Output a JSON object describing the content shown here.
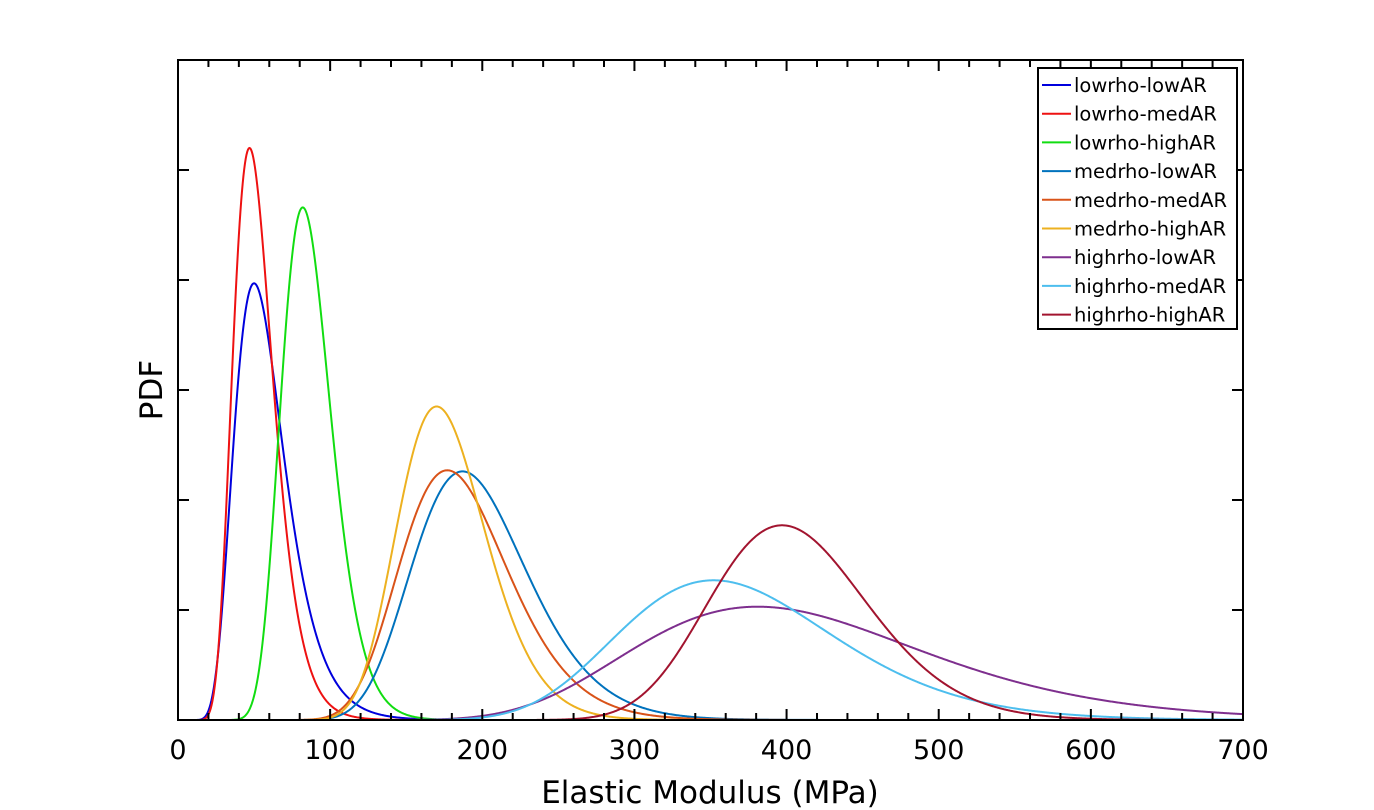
{
  "chart_data": {
    "type": "line",
    "title": "",
    "xlabel": "Elastic Modulus (MPa)",
    "ylabel": "PDF",
    "xlim": [
      0,
      700
    ],
    "ylim": [
      0,
      6
    ],
    "x_ticks": [
      0,
      100,
      200,
      300,
      400,
      500,
      600,
      700
    ],
    "x_tick_labels": [
      "0",
      "100",
      "200",
      "300",
      "400",
      "500",
      "600",
      "700"
    ],
    "x_minor_step": 20,
    "y_ticks": [
      0,
      1,
      2,
      3,
      4,
      5,
      6
    ],
    "y_tick_labels": [],
    "y_units_note": "y tick labels not shown; values in tick units (relative PDF)",
    "grid": false,
    "legend_position": "upper right",
    "series": [
      {
        "name": "lowrho-lowAR",
        "color": "#0000dd",
        "distribution": "lognormal",
        "mode": 50,
        "sigma": 0.33,
        "peak": 3.97
      },
      {
        "name": "lowrho-medAR",
        "color": "#ee1111",
        "distribution": "lognormal",
        "mode": 47,
        "sigma": 0.28,
        "peak": 5.2
      },
      {
        "name": "lowrho-highAR",
        "color": "#11dd11",
        "distribution": "lognormal",
        "mode": 82,
        "sigma": 0.2,
        "peak": 4.66
      },
      {
        "name": "medrho-lowAR",
        "color": "#0072bd",
        "distribution": "lognormal",
        "mode": 187,
        "sigma": 0.2,
        "peak": 2.26
      },
      {
        "name": "medrho-medAR",
        "color": "#d95319",
        "distribution": "lognormal",
        "mode": 177,
        "sigma": 0.2,
        "peak": 2.27
      },
      {
        "name": "medrho-highAR",
        "color": "#edb120",
        "distribution": "lognormal",
        "mode": 170,
        "sigma": 0.17,
        "peak": 2.85
      },
      {
        "name": "highrho-lowAR",
        "color": "#7e2f8e",
        "distribution": "lognormal",
        "mode": 381,
        "sigma": 0.25,
        "peak": 1.03
      },
      {
        "name": "highrho-medAR",
        "color": "#4dbeee",
        "distribution": "lognormal",
        "mode": 352,
        "sigma": 0.2,
        "peak": 1.27
      },
      {
        "name": "highrho-highAR",
        "color": "#a2142f",
        "distribution": "lognormal",
        "mode": 397,
        "sigma": 0.13,
        "peak": 1.77
      }
    ]
  },
  "legend": {
    "items": [
      {
        "label": "lowrho-lowAR"
      },
      {
        "label": "lowrho-medAR"
      },
      {
        "label": "lowrho-highAR"
      },
      {
        "label": "medrho-lowAR"
      },
      {
        "label": "medrho-medAR"
      },
      {
        "label": "medrho-highAR"
      },
      {
        "label": "highrho-lowAR"
      },
      {
        "label": "highrho-medAR"
      },
      {
        "label": "highrho-highAR"
      }
    ]
  }
}
